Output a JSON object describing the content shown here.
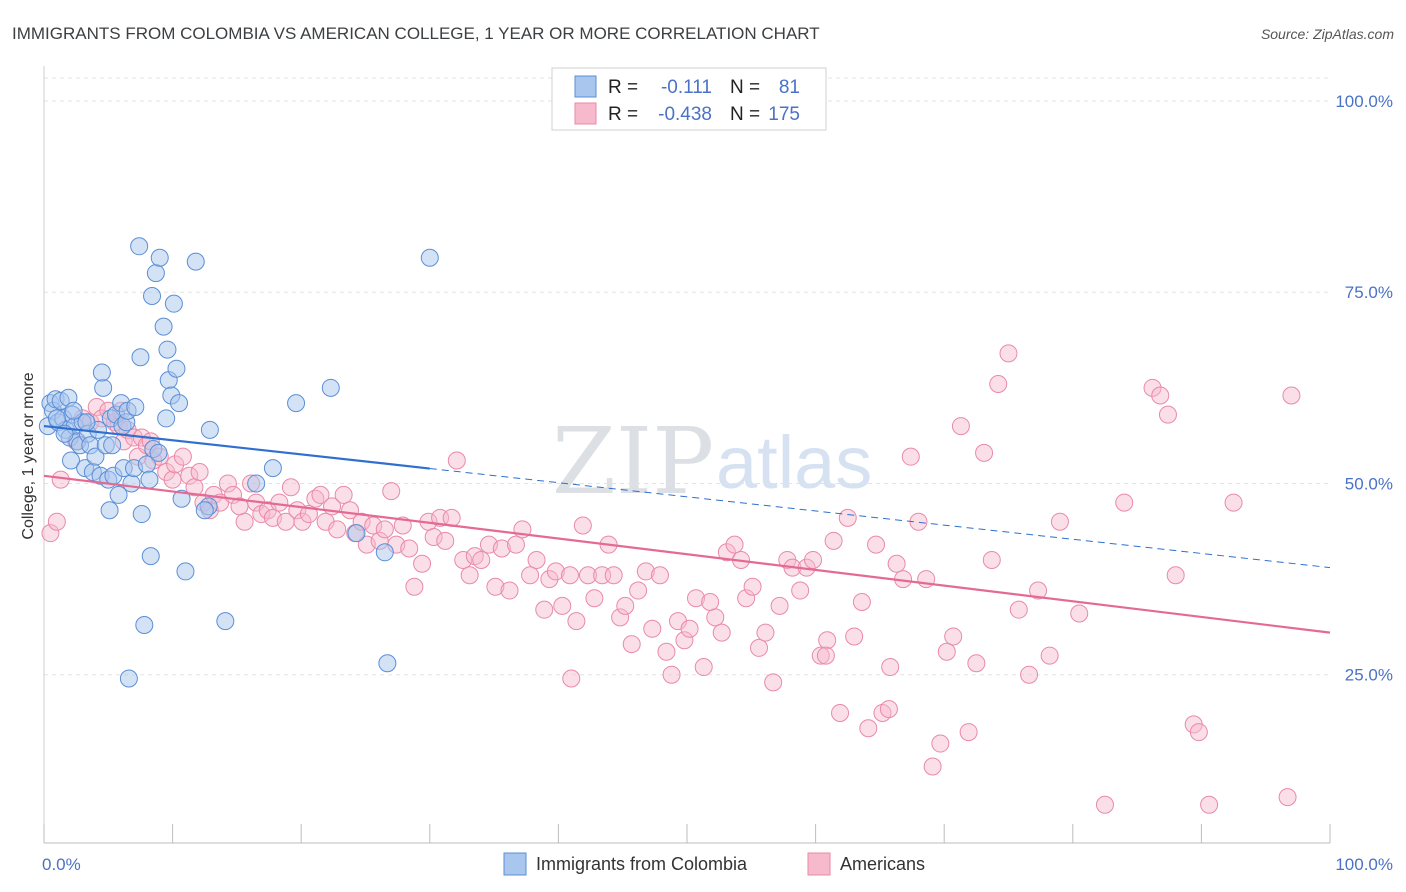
{
  "title": "IMMIGRANTS FROM COLOMBIA VS AMERICAN COLLEGE, 1 YEAR OR MORE CORRELATION CHART",
  "source": "Source: ZipAtlas.com",
  "watermark": {
    "zip": "ZIP",
    "atlas": "atlas"
  },
  "legend": {
    "r_label": "R =",
    "n_label": "N =",
    "rows": [
      {
        "r": "-0.111",
        "n": "81"
      },
      {
        "r": "-0.438",
        "n": "175"
      }
    ]
  },
  "colors": {
    "blue_fill": "#a9c6ee",
    "blue_stroke": "#5b8fd6",
    "blue_line": "#2f6fd0",
    "pink_fill": "#f7b9cc",
    "pink_stroke": "#e98aa8",
    "pink_line": "#e46a94"
  },
  "chart_data": {
    "type": "scatter",
    "title": "IMMIGRANTS FROM COLOMBIA VS AMERICAN COLLEGE, 1 YEAR OR MORE CORRELATION CHART",
    "xlabel": "",
    "ylabel": "College, 1 year or more",
    "xlim": [
      0,
      100
    ],
    "ylim": [
      3,
      103
    ],
    "x_tick_labels": [
      "0.0%",
      "100.0%"
    ],
    "y_ticks": [
      25,
      50,
      75,
      100
    ],
    "y_tick_labels": [
      "25.0%",
      "50.0%",
      "75.0%",
      "100.0%"
    ],
    "grid": true,
    "legend_position": "top-center",
    "series": [
      {
        "name": "Immigrants from Colombia",
        "r": -0.111,
        "n": 81,
        "trend": {
          "x0": 0,
          "y0": 57.5,
          "x1": 100,
          "y1": 39,
          "solid_until": 30
        },
        "points": [
          [
            0.3,
            57.5
          ],
          [
            0.5,
            60.5
          ],
          [
            0.7,
            59.5
          ],
          [
            0.9,
            61
          ],
          [
            1.1,
            58
          ],
          [
            1.3,
            60.8
          ],
          [
            1.5,
            58.5
          ],
          [
            1.7,
            57
          ],
          [
            1.9,
            61.2
          ],
          [
            2.0,
            56
          ],
          [
            2.2,
            59
          ],
          [
            2.4,
            57.5
          ],
          [
            2.1,
            53
          ],
          [
            2.6,
            55.5
          ],
          [
            2.8,
            55
          ],
          [
            3.0,
            58
          ],
          [
            3.2,
            52
          ],
          [
            3.4,
            56.5
          ],
          [
            3.6,
            55
          ],
          [
            3.8,
            51.5
          ],
          [
            4.0,
            53.5
          ],
          [
            4.2,
            57
          ],
          [
            4.4,
            51
          ],
          [
            4.6,
            62.5
          ],
          [
            4.5,
            64.5
          ],
          [
            4.8,
            55
          ],
          [
            5.0,
            50.5
          ],
          [
            5.1,
            46.5
          ],
          [
            5.2,
            58.5
          ],
          [
            5.4,
            51
          ],
          [
            5.6,
            59
          ],
          [
            5.8,
            48.5
          ],
          [
            6.0,
            60.5
          ],
          [
            6.1,
            57.5
          ],
          [
            6.2,
            52
          ],
          [
            6.4,
            58
          ],
          [
            6.5,
            59.5
          ],
          [
            6.6,
            24.5
          ],
          [
            6.8,
            50
          ],
          [
            7.0,
            52
          ],
          [
            7.1,
            60
          ],
          [
            7.4,
            81
          ],
          [
            7.5,
            66.5
          ],
          [
            7.6,
            46
          ],
          [
            7.8,
            31.5
          ],
          [
            8.0,
            52.5
          ],
          [
            8.2,
            50.5
          ],
          [
            8.4,
            74.5
          ],
          [
            8.5,
            54.5
          ],
          [
            8.7,
            77.5
          ],
          [
            8.9,
            54
          ],
          [
            9.0,
            79.5
          ],
          [
            9.3,
            70.5
          ],
          [
            9.5,
            58.5
          ],
          [
            9.6,
            67.5
          ],
          [
            9.7,
            63.5
          ],
          [
            9.9,
            61.5
          ],
          [
            10.1,
            73.5
          ],
          [
            10.3,
            65
          ],
          [
            10.5,
            60.5
          ],
          [
            10.7,
            48
          ],
          [
            11.0,
            38.5
          ],
          [
            11.8,
            79
          ],
          [
            12.8,
            47
          ],
          [
            12.9,
            57
          ],
          [
            14.1,
            32
          ],
          [
            16.5,
            50
          ],
          [
            17.8,
            52
          ],
          [
            19.6,
            60.5
          ],
          [
            22.3,
            62.5
          ],
          [
            24.3,
            43.5
          ],
          [
            26.5,
            41
          ],
          [
            26.7,
            26.5
          ],
          [
            30.0,
            79.5
          ],
          [
            8.3,
            40.5
          ],
          [
            12.5,
            46.5
          ],
          [
            2.3,
            59.5
          ],
          [
            1.0,
            58.5
          ],
          [
            1.6,
            56.5
          ],
          [
            3.3,
            58
          ],
          [
            5.3,
            55
          ]
        ]
      },
      {
        "name": "Americans",
        "r": -0.438,
        "n": 175,
        "trend": {
          "x0": 0,
          "y0": 51,
          "x1": 100,
          "y1": 30.5
        },
        "points": [
          [
            0.5,
            43.5
          ],
          [
            1.0,
            45
          ],
          [
            1.3,
            50.5
          ],
          [
            2.5,
            55.5
          ],
          [
            3.0,
            58.5
          ],
          [
            3.6,
            58
          ],
          [
            4.1,
            60
          ],
          [
            4.5,
            58.5
          ],
          [
            5.0,
            59.5
          ],
          [
            5.5,
            58
          ],
          [
            5.8,
            57.5
          ],
          [
            6.0,
            59.5
          ],
          [
            6.2,
            55.5
          ],
          [
            6.5,
            57
          ],
          [
            7.0,
            56
          ],
          [
            7.3,
            53.5
          ],
          [
            7.6,
            56
          ],
          [
            8.0,
            55
          ],
          [
            8.3,
            55.5
          ],
          [
            8.5,
            53
          ],
          [
            9.0,
            53.5
          ],
          [
            9.5,
            51.5
          ],
          [
            10.0,
            50.5
          ],
          [
            10.2,
            52.5
          ],
          [
            10.8,
            53.5
          ],
          [
            11.3,
            51
          ],
          [
            11.7,
            49.5
          ],
          [
            12.1,
            51.5
          ],
          [
            12.4,
            47.5
          ],
          [
            12.9,
            46.5
          ],
          [
            13.2,
            48.5
          ],
          [
            13.7,
            47.5
          ],
          [
            14.3,
            50
          ],
          [
            14.7,
            48.5
          ],
          [
            15.2,
            47
          ],
          [
            15.6,
            45
          ],
          [
            16.1,
            50
          ],
          [
            16.5,
            47.5
          ],
          [
            16.9,
            46
          ],
          [
            17.4,
            46.5
          ],
          [
            17.8,
            45.5
          ],
          [
            18.3,
            47.5
          ],
          [
            18.8,
            45
          ],
          [
            19.2,
            49.5
          ],
          [
            19.7,
            46.5
          ],
          [
            20.1,
            45
          ],
          [
            20.6,
            46
          ],
          [
            21.1,
            48
          ],
          [
            21.5,
            48.5
          ],
          [
            21.9,
            45
          ],
          [
            22.4,
            47
          ],
          [
            22.8,
            44
          ],
          [
            23.3,
            48.5
          ],
          [
            23.8,
            46.5
          ],
          [
            24.2,
            43.5
          ],
          [
            24.7,
            45
          ],
          [
            25.1,
            42
          ],
          [
            25.6,
            44.5
          ],
          [
            26.1,
            42.5
          ],
          [
            26.5,
            44
          ],
          [
            27.0,
            49
          ],
          [
            27.4,
            42
          ],
          [
            27.9,
            44.5
          ],
          [
            28.4,
            41.5
          ],
          [
            28.8,
            36.5
          ],
          [
            29.4,
            39.5
          ],
          [
            29.9,
            45
          ],
          [
            30.3,
            43
          ],
          [
            30.8,
            45.5
          ],
          [
            31.2,
            42.5
          ],
          [
            31.7,
            45.5
          ],
          [
            32.1,
            53
          ],
          [
            32.6,
            40
          ],
          [
            33.1,
            38
          ],
          [
            33.5,
            40.5
          ],
          [
            34.0,
            40
          ],
          [
            34.6,
            42
          ],
          [
            35.1,
            36.5
          ],
          [
            35.6,
            41.5
          ],
          [
            36.2,
            36
          ],
          [
            36.7,
            42
          ],
          [
            37.2,
            44
          ],
          [
            37.8,
            38
          ],
          [
            38.3,
            40
          ],
          [
            38.9,
            33.5
          ],
          [
            39.3,
            37.5
          ],
          [
            39.8,
            38.5
          ],
          [
            40.3,
            34
          ],
          [
            40.9,
            38
          ],
          [
            41.4,
            32
          ],
          [
            41.9,
            44.5
          ],
          [
            42.3,
            38
          ],
          [
            42.8,
            35
          ],
          [
            43.4,
            38
          ],
          [
            43.9,
            42
          ],
          [
            44.3,
            38
          ],
          [
            44.8,
            32.5
          ],
          [
            45.2,
            34
          ],
          [
            45.7,
            29
          ],
          [
            46.2,
            36
          ],
          [
            46.8,
            38.5
          ],
          [
            47.3,
            31
          ],
          [
            47.9,
            38
          ],
          [
            48.4,
            28
          ],
          [
            48.8,
            25
          ],
          [
            49.3,
            32
          ],
          [
            49.8,
            29.5
          ],
          [
            50.2,
            31
          ],
          [
            50.7,
            35
          ],
          [
            51.3,
            26
          ],
          [
            51.8,
            34.5
          ],
          [
            52.2,
            32.5
          ],
          [
            52.7,
            30.5
          ],
          [
            53.1,
            41
          ],
          [
            53.7,
            42
          ],
          [
            54.2,
            40
          ],
          [
            54.6,
            35
          ],
          [
            55.1,
            36.5
          ],
          [
            55.6,
            28.5
          ],
          [
            56.1,
            30.5
          ],
          [
            56.7,
            24
          ],
          [
            57.2,
            34
          ],
          [
            57.8,
            40
          ],
          [
            58.2,
            39
          ],
          [
            58.8,
            36
          ],
          [
            59.3,
            39
          ],
          [
            59.8,
            40
          ],
          [
            60.4,
            27.5
          ],
          [
            60.9,
            29.5
          ],
          [
            61.4,
            42.5
          ],
          [
            61.9,
            20
          ],
          [
            62.5,
            45.5
          ],
          [
            63.0,
            30
          ],
          [
            63.6,
            34.5
          ],
          [
            64.1,
            18
          ],
          [
            64.7,
            42
          ],
          [
            65.2,
            20
          ],
          [
            65.8,
            26
          ],
          [
            66.3,
            39.5
          ],
          [
            66.8,
            37.5
          ],
          [
            67.4,
            53.5
          ],
          [
            68.0,
            45
          ],
          [
            68.6,
            37.5
          ],
          [
            69.1,
            13
          ],
          [
            69.7,
            16
          ],
          [
            70.2,
            28
          ],
          [
            70.7,
            30
          ],
          [
            71.3,
            57.5
          ],
          [
            71.9,
            17.5
          ],
          [
            72.5,
            26.5
          ],
          [
            73.1,
            54
          ],
          [
            73.7,
            40
          ],
          [
            74.2,
            63
          ],
          [
            75.0,
            67
          ],
          [
            75.8,
            33.5
          ],
          [
            76.6,
            25
          ],
          [
            77.3,
            36
          ],
          [
            78.2,
            27.5
          ],
          [
            79.0,
            45
          ],
          [
            80.5,
            33
          ],
          [
            82.5,
            8
          ],
          [
            84.0,
            47.5
          ],
          [
            86.2,
            62.5
          ],
          [
            86.8,
            61.5
          ],
          [
            87.4,
            59
          ],
          [
            88.0,
            38
          ],
          [
            89.4,
            18.5
          ],
          [
            89.8,
            17.5
          ],
          [
            90.6,
            8
          ],
          [
            92.5,
            47.5
          ],
          [
            96.7,
            9
          ],
          [
            97.0,
            61.5
          ],
          [
            60.8,
            27.5
          ],
          [
            65.7,
            20.5
          ],
          [
            41.0,
            24.5
          ]
        ]
      }
    ]
  },
  "bottom_legend": [
    {
      "label": "Immigrants from Colombia"
    },
    {
      "label": "Americans"
    }
  ]
}
